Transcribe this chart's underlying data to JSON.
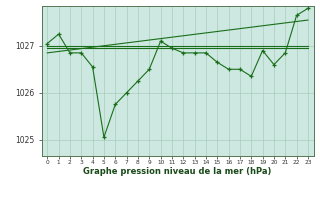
{
  "xlabel": "Graphe pression niveau de la mer (hPa)",
  "background_color": "#ffffff",
  "plot_background": "#cce8e0",
  "grid_color": "#aaccbb",
  "line_color": "#1a6e1a",
  "marker_color": "#1a6e1a",
  "axis_label_color": "#1a4a1a",
  "tick_color": "#333333",
  "ylim": [
    1024.65,
    1027.85
  ],
  "xlim": [
    -0.5,
    23.5
  ],
  "yticks": [
    1025,
    1026,
    1027
  ],
  "xticks": [
    0,
    1,
    2,
    3,
    4,
    5,
    6,
    7,
    8,
    9,
    10,
    11,
    12,
    13,
    14,
    15,
    16,
    17,
    18,
    19,
    20,
    21,
    22,
    23
  ],
  "series1_x": [
    0,
    1,
    2,
    3,
    4,
    5,
    6,
    7,
    8,
    9,
    10,
    11,
    12,
    13,
    14,
    15,
    16,
    17,
    18,
    19,
    20,
    21,
    22,
    23
  ],
  "series1_y": [
    1027.05,
    1027.25,
    1026.85,
    1026.85,
    1026.55,
    1025.05,
    1025.75,
    1026.0,
    1026.25,
    1026.5,
    1027.1,
    1026.95,
    1026.85,
    1026.85,
    1026.85,
    1026.65,
    1026.5,
    1026.5,
    1026.35,
    1026.9,
    1026.6,
    1026.85,
    1027.65,
    1027.8
  ],
  "series2_x": [
    0,
    23
  ],
  "series2_y": [
    1027.0,
    1027.0
  ],
  "series3_x": [
    0,
    23
  ],
  "series3_y": [
    1026.85,
    1027.55
  ],
  "series4_x": [
    0,
    23
  ],
  "series4_y": [
    1026.95,
    1026.95
  ],
  "figsize": [
    3.2,
    2.0
  ],
  "dpi": 100
}
